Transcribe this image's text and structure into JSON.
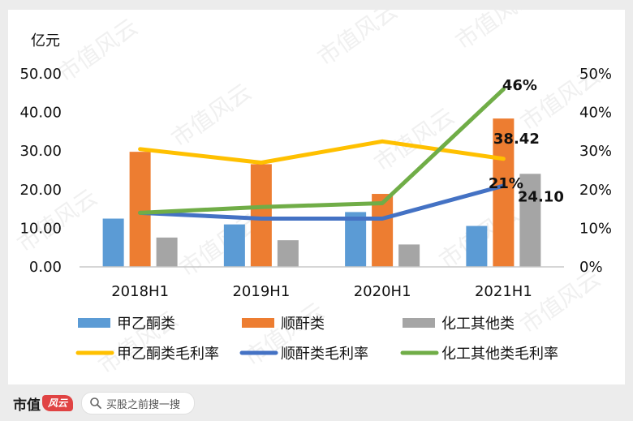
{
  "chart_data": {
    "type": "bar",
    "categories": [
      "2018H1",
      "2019H1",
      "2020H1",
      "2021H1"
    ],
    "ylabel": "亿元",
    "ylim": [
      0,
      50
    ],
    "y2lim": [
      0,
      0.5
    ],
    "y_ticks": [
      "0.00",
      "10.00",
      "20.00",
      "30.00",
      "40.00",
      "50.00"
    ],
    "y2_ticks": [
      "0%",
      "10%",
      "20%",
      "30%",
      "40%",
      "50%"
    ],
    "series": [
      {
        "name": "甲乙酮类",
        "kind": "bar",
        "color": "#5b9bd5",
        "values": [
          12.5,
          11.0,
          14.2,
          10.6
        ]
      },
      {
        "name": "顺酐类",
        "kind": "bar",
        "color": "#ed7d31",
        "values": [
          29.8,
          26.6,
          18.9,
          38.42
        ]
      },
      {
        "name": "化工其他类",
        "kind": "bar",
        "color": "#a5a5a5",
        "values": [
          7.6,
          6.9,
          5.8,
          24.1
        ]
      },
      {
        "name": "甲乙酮类毛利率",
        "kind": "line",
        "color": "#ffc000",
        "values": [
          0.305,
          0.27,
          0.325,
          0.28
        ]
      },
      {
        "name": "顺酐类毛利率",
        "kind": "line",
        "color": "#4472c4",
        "values": [
          0.14,
          0.125,
          0.125,
          0.21
        ]
      },
      {
        "name": "化工其他类毛利率",
        "kind": "line",
        "color": "#70ad47",
        "values": [
          0.14,
          0.155,
          0.165,
          0.46
        ]
      }
    ],
    "data_labels": {
      "bar_shunfu_2021": "38.42",
      "bar_other_2021": "24.10",
      "line_shunfu_2021": "21%",
      "line_other_2021": "46%"
    },
    "legend_position": "bottom",
    "grid": false
  },
  "watermark": "市值风云",
  "footer": {
    "brand": "市值",
    "brand_logo": "风云",
    "search_placeholder": "买股之前搜一搜"
  }
}
